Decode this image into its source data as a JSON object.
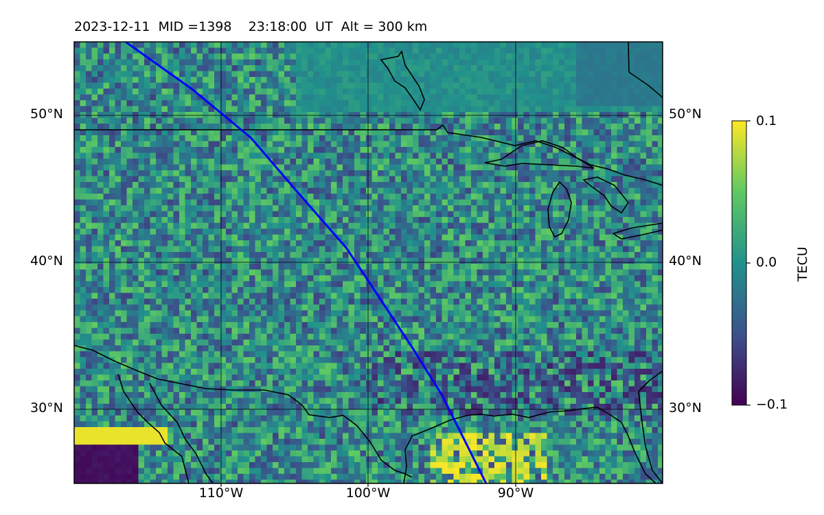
{
  "title": {
    "date": "2023-12-11",
    "mid": "MID =1398",
    "time": "23:18:00  UT",
    "alt": "Alt = 300 km"
  },
  "map": {
    "lon_range": [
      -120,
      -80
    ],
    "lat_range": [
      25,
      55
    ],
    "lat_ticks": [
      "30°N",
      "40°N",
      "50°N"
    ],
    "lon_ticks": [
      "110°W",
      "100°W",
      "90°W"
    ],
    "track_color": "#0000ff",
    "track": [
      [
        -116.5,
        55.0
      ],
      [
        -112.0,
        51.8
      ],
      [
        -108.0,
        48.5
      ],
      [
        -105.0,
        45.0
      ],
      [
        -101.5,
        41.0
      ],
      [
        -99.5,
        38.0
      ],
      [
        -97.0,
        34.2
      ],
      [
        -95.0,
        31.0
      ],
      [
        -93.5,
        28.0
      ],
      [
        -92.0,
        25.0
      ]
    ]
  },
  "colorbar": {
    "label": "TECU",
    "ticks": [
      "0.1",
      "0.0",
      "−0.1"
    ],
    "colormap": "viridis",
    "colors": [
      "#440154",
      "#3b528b",
      "#21918c",
      "#5ec962",
      "#fde725"
    ]
  }
}
